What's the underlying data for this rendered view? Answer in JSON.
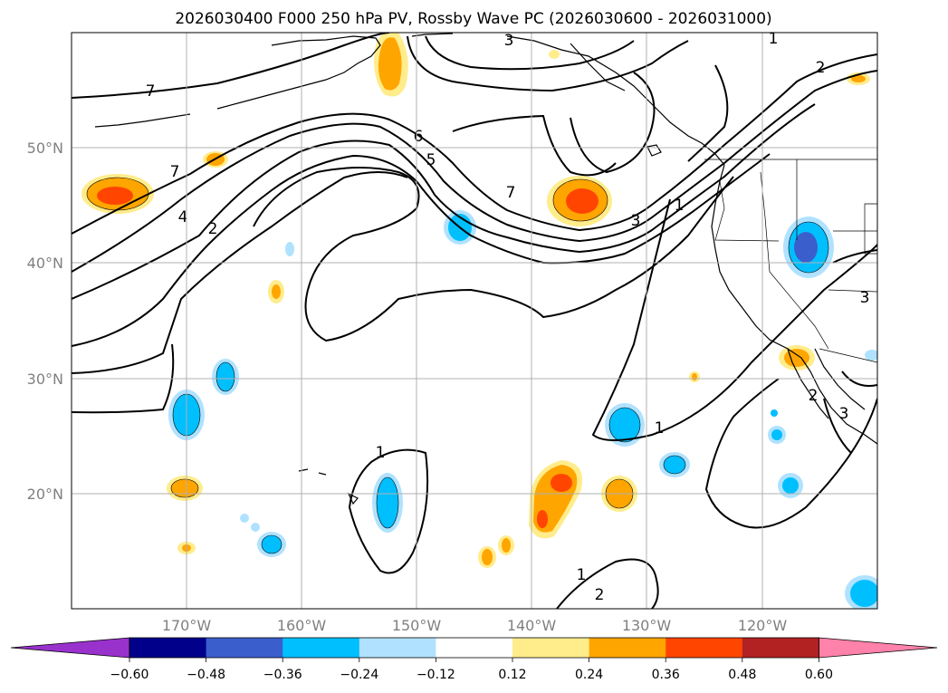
{
  "chart_data": {
    "type": "contour-map",
    "title": "2026030400 F000 250 hPa PV, Rossby Wave PC (2026030600 - 2026031000)",
    "x_ticks": [
      "170°W",
      "160°W",
      "150°W",
      "140°W",
      "130°W",
      "120°W"
    ],
    "y_ticks": [
      "50°N",
      "40°N",
      "30°N",
      "20°N"
    ],
    "lon_range": [
      -180,
      -110
    ],
    "lat_range": [
      10,
      60
    ],
    "colorbar": {
      "extend": "both",
      "colors": [
        "#9932cc",
        "#00008b",
        "#3a5fcd",
        "#00bfff",
        "#b0e2ff",
        "#ffffff",
        "#ffec8b",
        "#ffa500",
        "#ff4500",
        "#b22222",
        "#ff82ab"
      ],
      "tick_labels": [
        "−0.60",
        "−0.48",
        "−0.36",
        "−0.24",
        "−0.12",
        "0.12",
        "0.24",
        "0.36",
        "0.48",
        "0.60"
      ]
    },
    "contour_labels": [
      "3",
      "1",
      "2",
      "7",
      "6",
      "5",
      "7",
      "7",
      "4",
      "2",
      "3",
      "1",
      "3",
      "1",
      "1",
      "1",
      "2",
      "2",
      "3"
    ],
    "contour_field": "250 hPa PV (PVU)",
    "shaded_field": "Rossby Wave PC"
  }
}
